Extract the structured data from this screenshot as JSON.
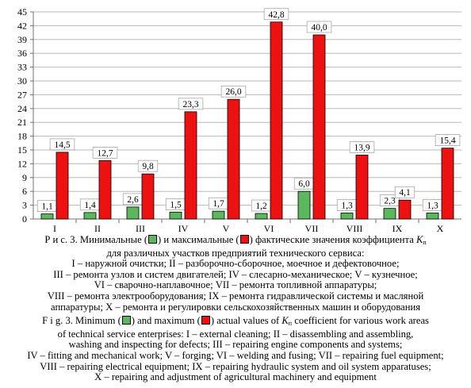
{
  "colors": {
    "min": "#5cb85c",
    "max": "#ee1111",
    "grid": "#b8b8b8",
    "axis": "#707070"
  },
  "chart_data": {
    "type": "bar",
    "categories": [
      "I",
      "II",
      "III",
      "IV",
      "V",
      "VI",
      "VII",
      "VIII",
      "IX",
      "X"
    ],
    "series": [
      {
        "values": [
          1.1,
          1.4,
          2.6,
          1.5,
          1.7,
          1.2,
          6.0,
          1.3,
          2.3,
          1.3
        ],
        "labels": [
          "1,1",
          "1,4",
          "2,6",
          "1,5",
          "1,7",
          "1,2",
          "6,0",
          "1,3",
          "2,3",
          "1,3"
        ]
      },
      {
        "values": [
          14.5,
          12.7,
          9.8,
          23.3,
          26.0,
          42.8,
          40.0,
          13.9,
          4.1,
          15.4
        ],
        "labels": [
          "14,5",
          "12,7",
          "9,8",
          "23,3",
          "26,0",
          "42,8",
          "40,0",
          "13,9",
          "4,1",
          "15,4"
        ]
      }
    ],
    "ylim": [
      0,
      45
    ],
    "yticks": [
      "0",
      "3",
      "6",
      "9",
      "12",
      "15",
      "18",
      "21",
      "24",
      "27",
      "30",
      "33",
      "36",
      "39",
      "42",
      "45"
    ],
    "grid": true
  },
  "caption": {
    "ru_l1_a": "Р и с.  3.  Минимальные (",
    "ru_l1_b": ") и максимальные (",
    "ru_l1_c": ") фактические значения коэффициента ",
    "ru_k": "K",
    "ru_k_sub": "п",
    "ru_l2": "для различных участков предприятий технического сервиса:",
    "ru_l3": "I – наружной очистки; II – разборочно-сборочное, моечное и дефектовочное;",
    "ru_l4": "III – ремонта узлов и систем двигателей; IV – слесарно-механическое; V – кузнечное;",
    "ru_l5": "VI – сварочно-наплавочное; VII – ремонта топливной аппаратуры;",
    "ru_l6": "VIII – ремонта электрооборудования; IX – ремонта гидравлической системы и масляной",
    "ru_l7": "аппаратуры; X – ремонта и регулировки сельскохозяйственных машин и оборудования",
    "en_l1_a": "F i g.  3.  Minimum (",
    "en_l1_b": ") and maximum (",
    "en_l1_c": ") actual values of ",
    "en_k": "K",
    "en_k_sub": "п",
    "en_l1_d": " coefficient for various work areas",
    "en_l2": "of technical service enterprises: I – external cleaning; II – disassembling and assembling,",
    "en_l3": "washing and inspecting for defects; III – repairing engine components and systems;",
    "en_l4": "IV – fitting and mechanical work; V – forging; VI – welding and fusing; VII – repairing fuel equipment;",
    "en_l5": "VIII – repairing electrical equipment; IX – repairing hydraulic system and oil system apparatuses;",
    "en_l6": "X – repairing and adjustment of agricultural machinery and equipment"
  }
}
